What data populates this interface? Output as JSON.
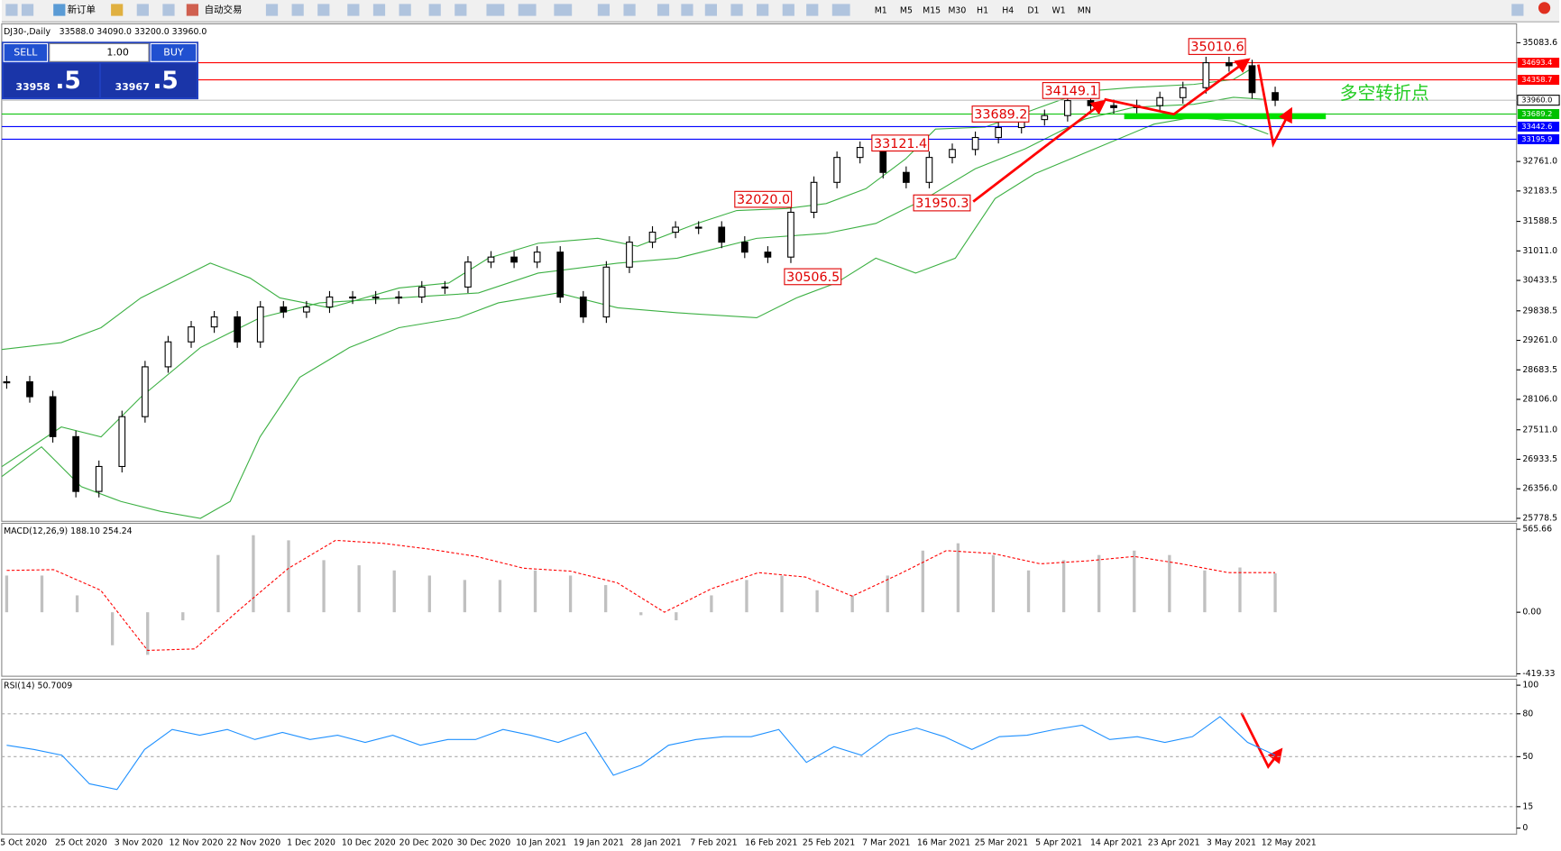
{
  "toolbar": {
    "new_order": "新订单",
    "auto_trading": "自动交易",
    "timeframes": [
      "M1",
      "M5",
      "M15",
      "M30",
      "H1",
      "H4",
      "D1",
      "W1",
      "MN"
    ]
  },
  "trade_panel": {
    "sell": "SELL",
    "buy": "BUY",
    "lots": "1.00",
    "sell_main": "33958",
    "sell_tail": ".5",
    "buy_main": "33967",
    "buy_tail": ".5"
  },
  "chart": {
    "header": "DJ30-,Daily",
    "ohlc": "33588.0 34090.0 33200.0 33960.0",
    "ylim": [
      25720,
      35454
    ],
    "yticks": [
      35083.6,
      {
        "value": 32761.0,
        "label": "32761.0"
      },
      32183.5,
      31588.5,
      {
        "value": 31011.0,
        "label": "31011.0"
      },
      30433.5,
      29838.5,
      {
        "value": 29261.0,
        "label": "29261.0"
      },
      28683.5,
      {
        "value": 28106.0,
        "label": "28106.0"
      },
      {
        "value": 27511.0,
        "label": "27511.0"
      },
      26933.5,
      {
        "value": 26356.0,
        "label": "26356.0"
      },
      25778.5
    ],
    "levels": [
      {
        "value": 34693.4,
        "label": "34693.4",
        "color": "#ff0000"
      },
      {
        "value": 34358.7,
        "label": "34358.7",
        "color": "#ff0000"
      },
      {
        "value": 33960.0,
        "label": "33960.0",
        "color": "#c0c0c0"
      },
      {
        "value": 33689.2,
        "label": "33689.2",
        "color": "#00c000"
      },
      {
        "value": 33442.6,
        "label": "33442.6",
        "color": "#0000ff"
      },
      {
        "value": 33195.9,
        "label": "33195.9",
        "color": "#0000ff"
      }
    ],
    "annotations": [
      {
        "value": 35010.6,
        "label": "35010.6"
      },
      {
        "value": 34149.1,
        "label": "34149.1"
      },
      {
        "value": 33689.2,
        "label": "33689.2"
      },
      {
        "value": 33121.4,
        "label": "33121.4"
      },
      {
        "value": 32020.0,
        "label": "32020.0"
      },
      {
        "value": 31950.3,
        "label": "31950.3"
      },
      {
        "value": 30506.5,
        "label": "30506.5"
      }
    ],
    "note": "多空转折点",
    "closes": [
      28450,
      28158,
      27377,
      26305,
      26793,
      27768,
      28743,
      29231,
      29524,
      29719,
      29231,
      29914,
      29816,
      29914,
      30109,
      30109,
      30109,
      30109,
      30304,
      30304,
      30792,
      30890,
      30792,
      30987,
      30109,
      29719,
      30694,
      31182,
      31377,
      31475,
      31475,
      31182,
      30987,
      30890,
      31767,
      32352,
      32840,
      33035,
      32547,
      32352,
      32840,
      32996,
      33230,
      33425,
      33581,
      33659,
      33952,
      33854,
      33815,
      33854,
      34010,
      34205,
      34693,
      34634,
      34108,
      33960
    ],
    "dates": [
      "5 Oct 2020",
      "25 Oct 2020",
      "3 Nov 2020",
      "12 Nov 2020",
      "22 Nov 2020",
      "1 Dec 2020",
      "10 Dec 2020",
      "20 Dec 2020",
      "30 Dec 2020",
      "10 Jan 2021",
      "19 Jan 2021",
      "28 Jan 2021",
      "7 Feb 2021",
      "16 Feb 2021",
      "25 Feb 2021",
      "7 Mar 2021",
      "16 Mar 2021",
      "25 Mar 2021",
      "5 Apr 2021",
      "14 Apr 2021",
      "23 Apr 2021",
      "3 May 2021",
      "12 May 2021"
    ]
  },
  "macd": {
    "label": "MACD(12,26,9) 188.10 254.24",
    "ylim": [
      -436,
      606
    ],
    "yticks": [
      565.66,
      {
        "value": 0,
        "label": "0.00"
      },
      -419.33
    ],
    "histogram": [
      250,
      250,
      115,
      -225,
      -290,
      -55,
      390,
      525,
      490,
      355,
      320,
      285,
      250,
      220,
      220,
      285,
      250,
      185,
      -20,
      -55,
      115,
      220,
      250,
      150,
      115,
      250,
      420,
      470,
      390,
      285,
      355,
      390,
      420,
      390,
      285,
      305,
      265
    ],
    "signal": [
      285,
      290,
      150,
      -260,
      -250,
      30,
      300,
      490,
      470,
      430,
      380,
      300,
      280,
      200,
      0,
      160,
      270,
      240,
      110,
      260,
      420,
      400,
      330,
      350,
      380,
      330,
      270,
      270
    ]
  },
  "rsi": {
    "label": "RSI(14) 50.7009",
    "ylim": [
      -4.2,
      104.2
    ],
    "yticks": [
      100,
      80,
      50,
      15,
      0
    ],
    "grid": [
      80,
      50,
      15
    ],
    "values": [
      58,
      55,
      51,
      31,
      27,
      55,
      69,
      65,
      69,
      62,
      67,
      62,
      65,
      60,
      65,
      58,
      62,
      62,
      69,
      65,
      60,
      67,
      37,
      44,
      58,
      62,
      64,
      64,
      69,
      46,
      57,
      51,
      65,
      70,
      64,
      55,
      64,
      65,
      69,
      72,
      62,
      64,
      60,
      64,
      78,
      60,
      51
    ]
  }
}
